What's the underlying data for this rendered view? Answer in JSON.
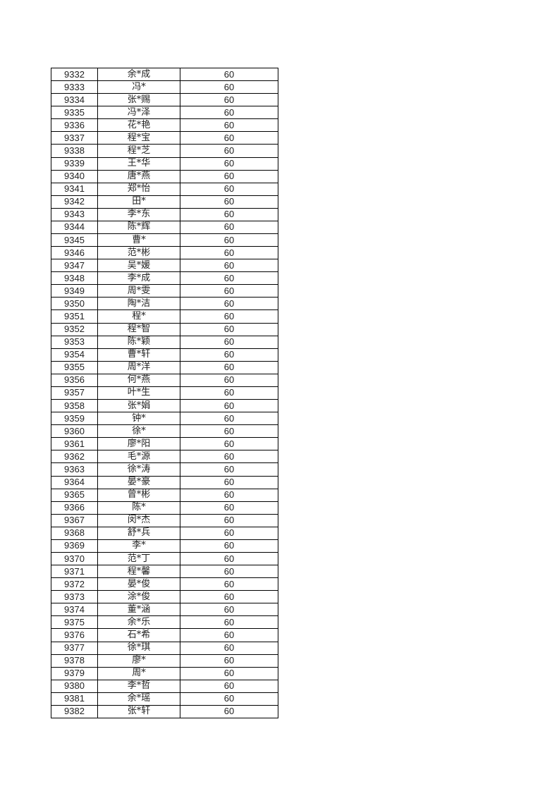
{
  "table": {
    "rows": [
      [
        "9332",
        "余*成",
        "60"
      ],
      [
        "9333",
        "冯*",
        "60"
      ],
      [
        "9334",
        "张*赐",
        "60"
      ],
      [
        "9335",
        "冯*泽",
        "60"
      ],
      [
        "9336",
        "花*艳",
        "60"
      ],
      [
        "9337",
        "程*宝",
        "60"
      ],
      [
        "9338",
        "程*芝",
        "60"
      ],
      [
        "9339",
        "王*华",
        "60"
      ],
      [
        "9340",
        "唐*燕",
        "60"
      ],
      [
        "9341",
        "郑*怡",
        "60"
      ],
      [
        "9342",
        "田*",
        "60"
      ],
      [
        "9343",
        "李*东",
        "60"
      ],
      [
        "9344",
        "陈*辉",
        "60"
      ],
      [
        "9345",
        "曹*",
        "60"
      ],
      [
        "9346",
        "范*彬",
        "60"
      ],
      [
        "9347",
        "吴*媛",
        "60"
      ],
      [
        "9348",
        "李*成",
        "60"
      ],
      [
        "9349",
        "周*雯",
        "60"
      ],
      [
        "9350",
        "陶*洁",
        "60"
      ],
      [
        "9351",
        "程*",
        "60"
      ],
      [
        "9352",
        "程*智",
        "60"
      ],
      [
        "9353",
        "陈*颖",
        "60"
      ],
      [
        "9354",
        "曹*轩",
        "60"
      ],
      [
        "9355",
        "周*洋",
        "60"
      ],
      [
        "9356",
        "何*燕",
        "60"
      ],
      [
        "9357",
        "叶*生",
        "60"
      ],
      [
        "9358",
        "张*娟",
        "60"
      ],
      [
        "9359",
        "钟*",
        "60"
      ],
      [
        "9360",
        "徐*",
        "60"
      ],
      [
        "9361",
        "廖*阳",
        "60"
      ],
      [
        "9362",
        "毛*源",
        "60"
      ],
      [
        "9363",
        "徐*涛",
        "60"
      ],
      [
        "9364",
        "晏*豪",
        "60"
      ],
      [
        "9365",
        "曾*彬",
        "60"
      ],
      [
        "9366",
        "陈*",
        "60"
      ],
      [
        "9367",
        "闵*杰",
        "60"
      ],
      [
        "9368",
        "舒*兵",
        "60"
      ],
      [
        "9369",
        "李*",
        "60"
      ],
      [
        "9370",
        "范*丁",
        "60"
      ],
      [
        "9371",
        "程*馨",
        "60"
      ],
      [
        "9372",
        "晏*俊",
        "60"
      ],
      [
        "9373",
        "涂*俊",
        "60"
      ],
      [
        "9374",
        "董*涵",
        "60"
      ],
      [
        "9375",
        "余*乐",
        "60"
      ],
      [
        "9376",
        "石*希",
        "60"
      ],
      [
        "9377",
        "徐*琪",
        "60"
      ],
      [
        "9378",
        "廖*",
        "60"
      ],
      [
        "9379",
        "周*",
        "60"
      ],
      [
        "9380",
        "李*哲",
        "60"
      ],
      [
        "9381",
        "余*瑶",
        "60"
      ],
      [
        "9382",
        "张*轩",
        "60"
      ]
    ]
  }
}
